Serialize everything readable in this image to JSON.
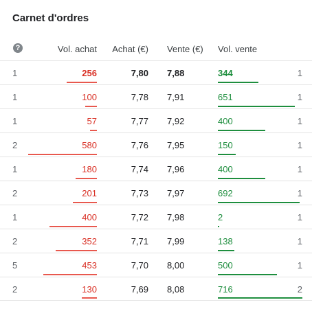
{
  "title": "Carnet d'ordres",
  "help_icon": "question-circle-icon",
  "headers": {
    "vol_buy": "Vol. achat",
    "buy": "Achat (€)",
    "sell": "Vente (€)",
    "vol_sell": "Vol. vente"
  },
  "colors": {
    "buy": "#d93025",
    "sell": "#1e8e3e"
  },
  "rows": [
    {
      "count_buy": "1",
      "vol_buy": "256",
      "buy": "7,80",
      "sell": "7,88",
      "vol_sell": "344",
      "count_sell": "1",
      "bold": true
    },
    {
      "count_buy": "1",
      "vol_buy": "100",
      "buy": "7,78",
      "sell": "7,91",
      "vol_sell": "651",
      "count_sell": "1"
    },
    {
      "count_buy": "1",
      "vol_buy": "57",
      "buy": "7,77",
      "sell": "7,92",
      "vol_sell": "400",
      "count_sell": "1"
    },
    {
      "count_buy": "2",
      "vol_buy": "580",
      "buy": "7,76",
      "sell": "7,95",
      "vol_sell": "150",
      "count_sell": "1"
    },
    {
      "count_buy": "1",
      "vol_buy": "180",
      "buy": "7,74",
      "sell": "7,96",
      "vol_sell": "400",
      "count_sell": "1"
    },
    {
      "count_buy": "2",
      "vol_buy": "201",
      "buy": "7,73",
      "sell": "7,97",
      "vol_sell": "692",
      "count_sell": "1"
    },
    {
      "count_buy": "1",
      "vol_buy": "400",
      "buy": "7,72",
      "sell": "7,98",
      "vol_sell": "2",
      "count_sell": "1"
    },
    {
      "count_buy": "2",
      "vol_buy": "352",
      "buy": "7,71",
      "sell": "7,99",
      "vol_sell": "138",
      "count_sell": "1"
    },
    {
      "count_buy": "5",
      "vol_buy": "453",
      "buy": "7,70",
      "sell": "8,00",
      "vol_sell": "500",
      "count_sell": "1"
    },
    {
      "count_buy": "2",
      "vol_buy": "130",
      "buy": "7,69",
      "sell": "8,08",
      "vol_sell": "716",
      "count_sell": "2"
    }
  ]
}
